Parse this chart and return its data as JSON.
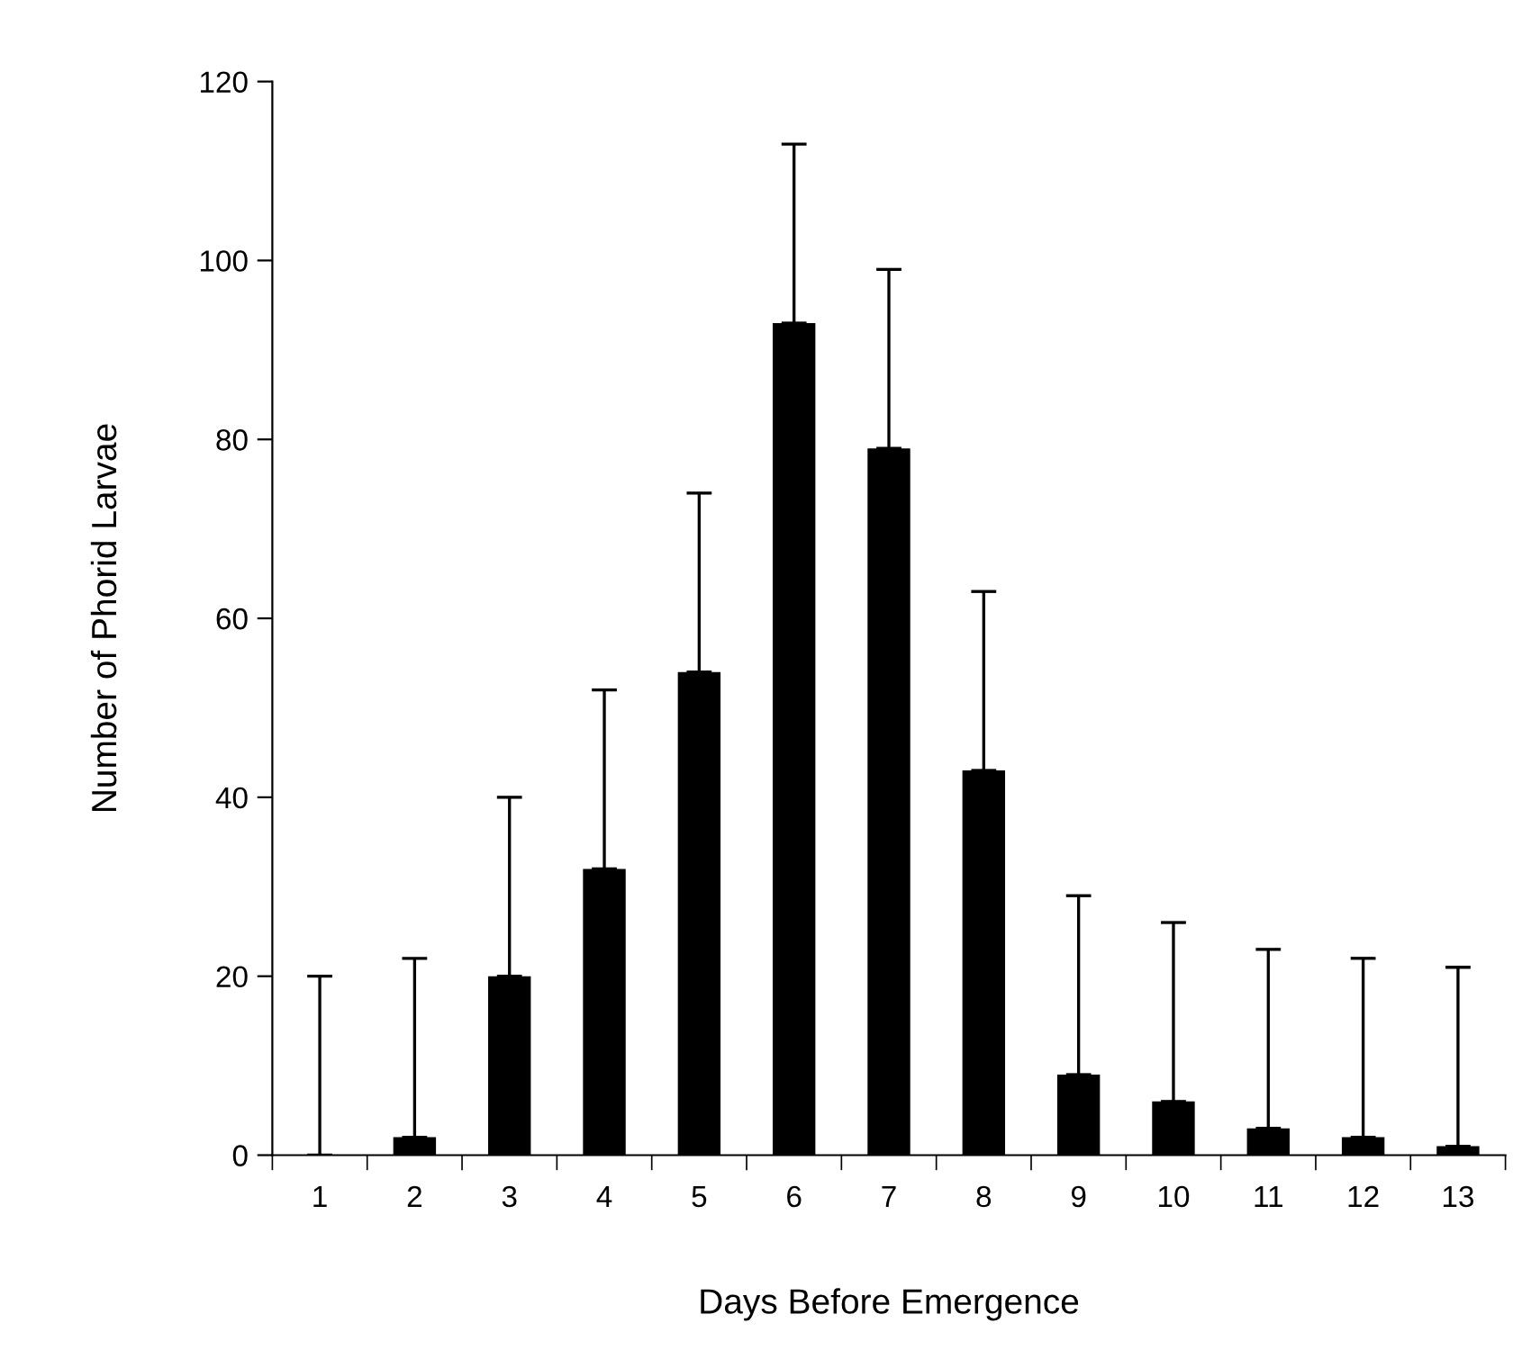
{
  "chart_data": {
    "type": "bar",
    "xlabel": "Days Before Emergence",
    "ylabel": "Number of Phorid Larvae",
    "categories": [
      "1",
      "2",
      "3",
      "4",
      "5",
      "6",
      "7",
      "8",
      "9",
      "10",
      "11",
      "12",
      "13"
    ],
    "values": [
      0,
      2,
      20,
      32,
      54,
      93,
      79,
      43,
      9,
      6,
      3,
      2,
      1
    ],
    "errors": [
      [
        0,
        20
      ],
      [
        2,
        22
      ],
      [
        20,
        40
      ],
      [
        32,
        52
      ],
      [
        54,
        74
      ],
      [
        93,
        113
      ],
      [
        79,
        99
      ],
      [
        43,
        63
      ],
      [
        9,
        29
      ],
      [
        6,
        26
      ],
      [
        3,
        23
      ],
      [
        2,
        22
      ],
      [
        1,
        21
      ]
    ],
    "color": "#000000",
    "ylim": [
      0,
      120
    ],
    "yticks": [
      0,
      20,
      40,
      60,
      80,
      100,
      120
    ],
    "grid": false,
    "legend": false
  }
}
